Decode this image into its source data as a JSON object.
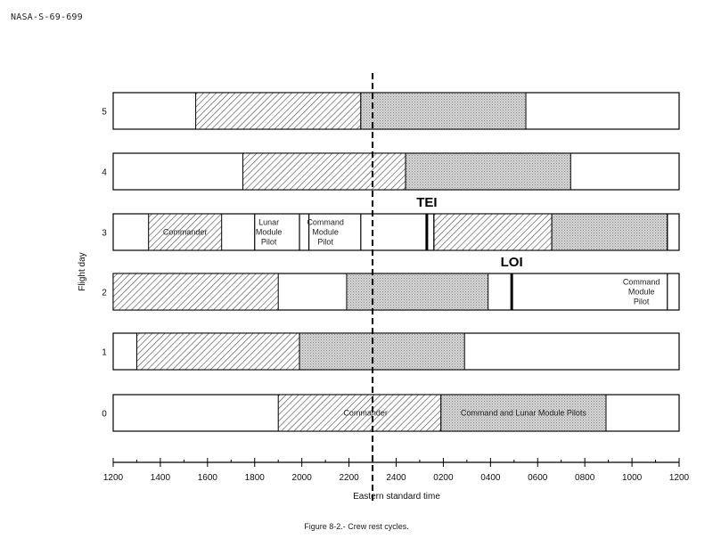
{
  "document_id": "NASA-S-69-699",
  "caption": "Figure 8-2.- Crew rest cycles.",
  "chart_data": {
    "type": "gantt",
    "xlabel": "Eastern standard time",
    "ylabel": "Flight day",
    "x_tick_labels": [
      "1200",
      "1400",
      "1600",
      "1800",
      "2000",
      "2200",
      "2400",
      "0200",
      "0400",
      "0600",
      "0800",
      "1000",
      "1200"
    ],
    "x_unit": "hours elapsed from 1200 EST",
    "x_range": [
      0,
      24
    ],
    "reference_line_hour": 11,
    "days": [
      {
        "day": "5",
        "segments": [
          {
            "start": 3.5,
            "end": 10.5,
            "fill": "hatched"
          },
          {
            "start": 10.5,
            "end": 17.5,
            "fill": "stippled"
          }
        ],
        "labels": [],
        "markers": []
      },
      {
        "day": "4",
        "segments": [
          {
            "start": 5.5,
            "end": 12.4,
            "fill": "hatched"
          },
          {
            "start": 12.4,
            "end": 19.4,
            "fill": "stippled"
          }
        ],
        "labels": [],
        "markers": []
      },
      {
        "day": "3",
        "segments": [
          {
            "start": 1.5,
            "end": 4.6,
            "fill": "hatched"
          },
          {
            "start": 13.6,
            "end": 18.6,
            "fill": "hatched"
          },
          {
            "start": 18.6,
            "end": 23.5,
            "fill": "stippled"
          }
        ],
        "labels": [
          {
            "lines": [
              "Commander"
            ],
            "at": 3.05
          },
          {
            "lines": [
              "Lunar",
              "Module",
              "Pilot"
            ],
            "at": 6.6
          },
          {
            "lines": [
              "Command",
              "Module",
              "Pilot"
            ],
            "at": 9.0
          }
        ],
        "dividers": [
          6.0,
          7.9,
          8.3,
          10.5,
          13.6,
          23.5
        ],
        "markers": [
          {
            "label": "TEI",
            "at": 13.3
          }
        ]
      },
      {
        "day": "2",
        "segments": [
          {
            "start": 0.0,
            "end": 7.0,
            "fill": "hatched"
          },
          {
            "start": 9.9,
            "end": 15.9,
            "fill": "stippled"
          }
        ],
        "labels": [
          {
            "lines": [
              "Command",
              "Module",
              "Pilot"
            ],
            "at": 22.4
          }
        ],
        "dividers": [
          23.5
        ],
        "markers": [
          {
            "label": "LOI",
            "at": 16.9
          }
        ]
      },
      {
        "day": "1",
        "segments": [
          {
            "start": 1.0,
            "end": 7.9,
            "fill": "hatched"
          },
          {
            "start": 7.9,
            "end": 14.9,
            "fill": "stippled"
          }
        ],
        "labels": [],
        "markers": []
      },
      {
        "day": "0",
        "segments": [
          {
            "start": 7.0,
            "end": 13.9,
            "fill": "hatched"
          },
          {
            "start": 13.9,
            "end": 20.9,
            "fill": "stippled"
          }
        ],
        "labels": [
          {
            "lines": [
              "Commander"
            ],
            "at": 10.7
          },
          {
            "lines": [
              "Command and Lunar Module Pilots"
            ],
            "at": 17.4
          }
        ],
        "markers": []
      }
    ],
    "colors": {
      "hatch": "#555555",
      "stipple": "#c8c8c8",
      "outline": "#000000"
    }
  }
}
